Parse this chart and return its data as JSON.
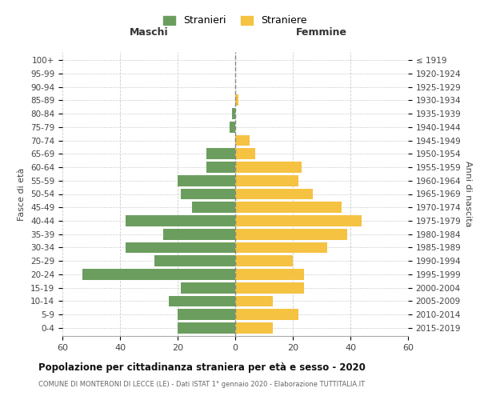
{
  "age_groups": [
    "0-4",
    "5-9",
    "10-14",
    "15-19",
    "20-24",
    "25-29",
    "30-34",
    "35-39",
    "40-44",
    "45-49",
    "50-54",
    "55-59",
    "60-64",
    "65-69",
    "70-74",
    "75-79",
    "80-84",
    "85-89",
    "90-94",
    "95-99",
    "100+"
  ],
  "birth_years": [
    "2015-2019",
    "2010-2014",
    "2005-2009",
    "2000-2004",
    "1995-1999",
    "1990-1994",
    "1985-1989",
    "1980-1984",
    "1975-1979",
    "1970-1974",
    "1965-1969",
    "1960-1964",
    "1955-1959",
    "1950-1954",
    "1945-1949",
    "1940-1944",
    "1935-1939",
    "1930-1934",
    "1925-1929",
    "1920-1924",
    "≤ 1919"
  ],
  "males": [
    20,
    20,
    23,
    19,
    53,
    28,
    38,
    25,
    38,
    15,
    19,
    20,
    10,
    10,
    0,
    2,
    1,
    0,
    0,
    0,
    0
  ],
  "females": [
    13,
    22,
    13,
    24,
    24,
    20,
    32,
    39,
    44,
    37,
    27,
    22,
    23,
    7,
    5,
    0,
    0,
    1,
    0,
    0,
    0
  ],
  "male_color": "#6b9e5e",
  "female_color": "#f5c242",
  "title": "Popolazione per cittadinanza straniera per età e sesso - 2020",
  "subtitle": "COMUNE DI MONTERONI DI LECCE (LE) - Dati ISTAT 1° gennaio 2020 - Elaborazione TUTTITALIA.IT",
  "xlabel_left": "Maschi",
  "xlabel_right": "Femmine",
  "ylabel_left": "Fasce di età",
  "ylabel_right": "Anni di nascita",
  "legend_male": "Stranieri",
  "legend_female": "Straniere",
  "xlim": 60,
  "bg_color": "#ffffff",
  "grid_color": "#cccccc",
  "bar_height": 0.82
}
